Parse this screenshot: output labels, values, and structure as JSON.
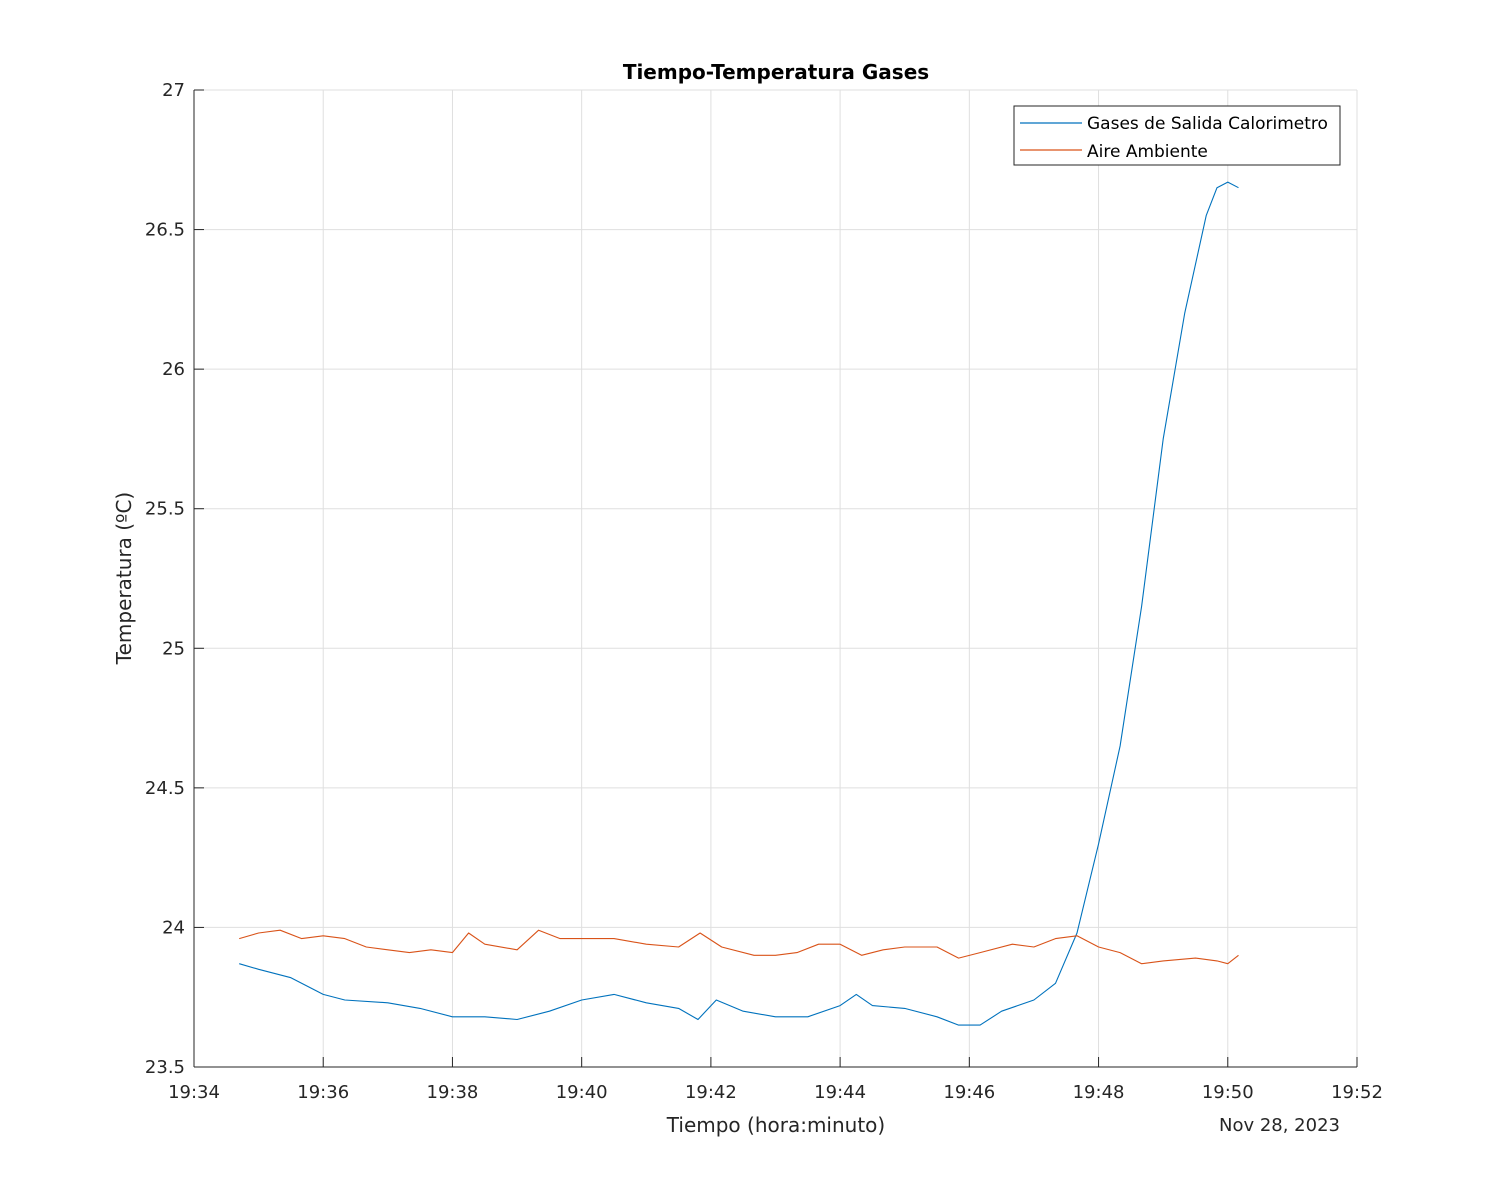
{
  "chart_data": {
    "type": "line",
    "title": "Tiempo-Temperatura Gases",
    "xlabel": "Tiempo (hora:minuto)",
    "ylabel": "Temperatura (ºC)",
    "date_label": "Nov 28, 2023",
    "x_ticks": [
      "19:34",
      "19:36",
      "19:38",
      "19:40",
      "19:42",
      "19:44",
      "19:46",
      "19:48",
      "19:50",
      "19:52"
    ],
    "y_ticks": [
      "23.5",
      "24",
      "24.5",
      "25",
      "25.5",
      "26",
      "26.5",
      "27"
    ],
    "xlim": [
      "19:34",
      "19:52"
    ],
    "ylim": [
      23.5,
      27
    ],
    "grid": true,
    "legend_position": "top-right",
    "series": [
      {
        "name": "Gases de Salida Calorimetro",
        "color": "#0072BD",
        "x": [
          "19:34:42",
          "19:35:00",
          "19:35:30",
          "19:36:00",
          "19:36:20",
          "19:37:00",
          "19:37:30",
          "19:38:00",
          "19:38:30",
          "19:39:00",
          "19:39:30",
          "19:40:00",
          "19:40:30",
          "19:41:00",
          "19:41:30",
          "19:41:48",
          "19:42:05",
          "19:42:30",
          "19:43:00",
          "19:43:30",
          "19:44:00",
          "19:44:15",
          "19:44:30",
          "19:45:00",
          "19:45:30",
          "19:45:50",
          "19:46:10",
          "19:46:30",
          "19:47:00",
          "19:47:20",
          "19:47:40",
          "19:48:00",
          "19:48:20",
          "19:48:40",
          "19:49:00",
          "19:49:20",
          "19:49:40",
          "19:49:50",
          "19:50:00",
          "19:50:10"
        ],
        "y": [
          23.87,
          23.85,
          23.82,
          23.76,
          23.74,
          23.73,
          23.71,
          23.68,
          23.68,
          23.67,
          23.7,
          23.74,
          23.76,
          23.73,
          23.71,
          23.67,
          23.74,
          23.7,
          23.68,
          23.68,
          23.72,
          23.76,
          23.72,
          23.71,
          23.68,
          23.65,
          23.65,
          23.7,
          23.74,
          23.8,
          23.98,
          24.3,
          24.65,
          25.15,
          25.75,
          26.2,
          26.55,
          26.65,
          26.67,
          26.65
        ]
      },
      {
        "name": "Aire Ambiente",
        "color": "#D95319",
        "x": [
          "19:34:42",
          "19:35:00",
          "19:35:20",
          "19:35:40",
          "19:36:00",
          "19:36:20",
          "19:36:40",
          "19:37:00",
          "19:37:20",
          "19:37:40",
          "19:38:00",
          "19:38:15",
          "19:38:30",
          "19:39:00",
          "19:39:20",
          "19:39:40",
          "19:40:00",
          "19:40:30",
          "19:41:00",
          "19:41:30",
          "19:41:50",
          "19:42:10",
          "19:42:40",
          "19:43:00",
          "19:43:20",
          "19:43:40",
          "19:44:00",
          "19:44:20",
          "19:44:40",
          "19:45:00",
          "19:45:30",
          "19:45:50",
          "19:46:10",
          "19:46:40",
          "19:47:00",
          "19:47:20",
          "19:47:40",
          "19:48:00",
          "19:48:20",
          "19:48:40",
          "19:49:00",
          "19:49:30",
          "19:49:50",
          "19:50:00",
          "19:50:10"
        ],
        "y": [
          23.96,
          23.98,
          23.99,
          23.96,
          23.97,
          23.96,
          23.93,
          23.92,
          23.91,
          23.92,
          23.91,
          23.98,
          23.94,
          23.92,
          23.99,
          23.96,
          23.96,
          23.96,
          23.94,
          23.93,
          23.98,
          23.93,
          23.9,
          23.9,
          23.91,
          23.94,
          23.94,
          23.9,
          23.92,
          23.93,
          23.93,
          23.89,
          23.91,
          23.94,
          23.93,
          23.96,
          23.97,
          23.93,
          23.91,
          23.87,
          23.88,
          23.89,
          23.88,
          23.87,
          23.9
        ]
      }
    ]
  }
}
